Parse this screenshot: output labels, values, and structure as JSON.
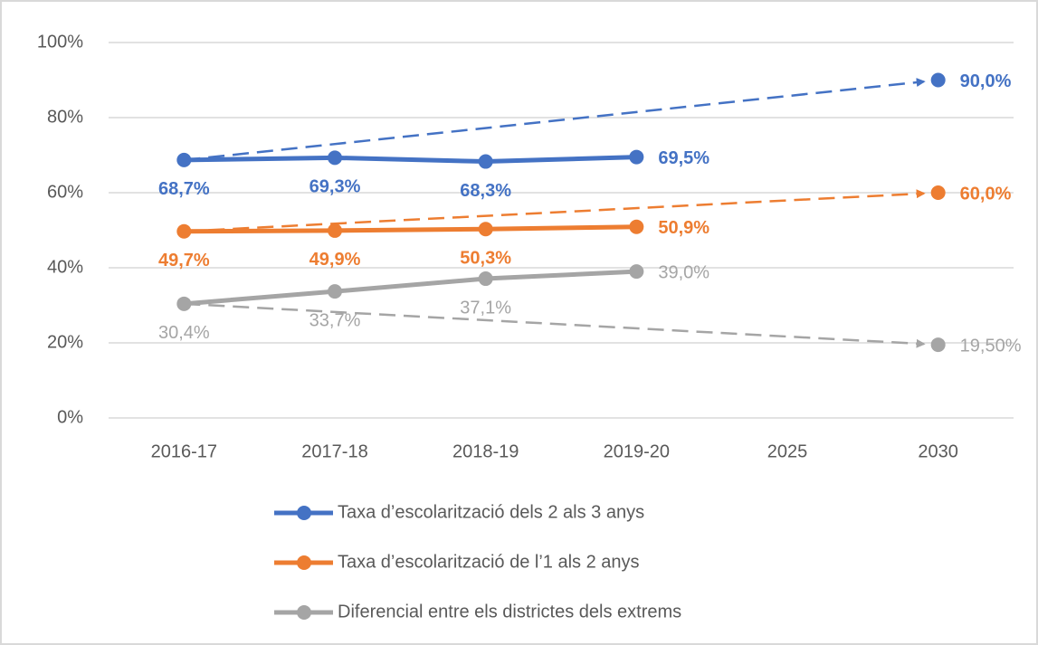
{
  "chart_data": {
    "type": "line",
    "categories": [
      "2016-17",
      "2017-18",
      "2018-19",
      "2019-20",
      "2025",
      "2030"
    ],
    "series": [
      {
        "name": "Taxa d’escolarització dels 2 als 3 anys",
        "color": "#4472c4",
        "values": [
          68.7,
          69.3,
          68.3,
          69.5,
          null,
          90.0
        ],
        "value_labels": [
          "68,7%",
          "69,3%",
          "68,3%",
          "69,5%",
          null,
          "90,0%"
        ]
      },
      {
        "name": "Taxa d’escolarització de l’1 als 2 anys",
        "color": "#ed7d31",
        "values": [
          49.7,
          49.9,
          50.3,
          50.9,
          null,
          60.0
        ],
        "value_labels": [
          "49,7%",
          "49,9%",
          "50,3%",
          "50,9%",
          null,
          "60,0%"
        ]
      },
      {
        "name": "Diferencial entre els districtes dels extrems",
        "color": "#a5a5a5",
        "values": [
          30.4,
          33.7,
          37.1,
          39.0,
          null,
          19.5
        ],
        "value_labels": [
          "30,4%",
          "33,7%",
          "37,1%",
          "39,0%",
          null,
          "19,50%"
        ]
      }
    ],
    "ylim": [
      0,
      100
    ],
    "yticks": [
      {
        "value": 0,
        "label": "0%"
      },
      {
        "value": 20,
        "label": "20%"
      },
      {
        "value": 40,
        "label": "40%"
      },
      {
        "value": 60,
        "label": "60%"
      },
      {
        "value": 80,
        "label": "80%"
      },
      {
        "value": 100,
        "label": "100%"
      }
    ],
    "grid": true,
    "legend": "bottom"
  }
}
